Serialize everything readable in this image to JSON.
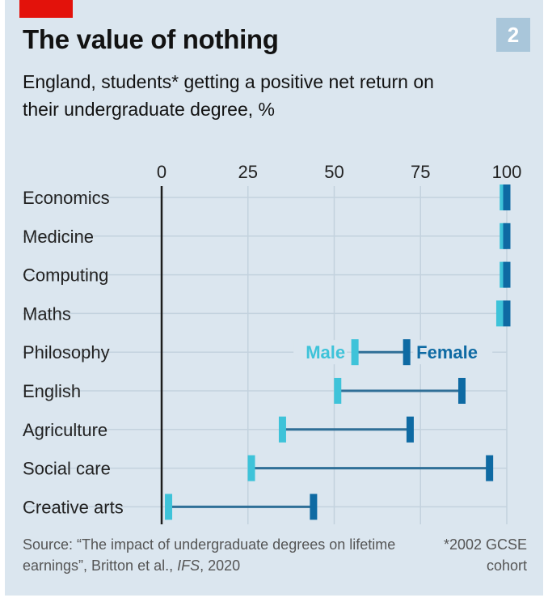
{
  "header": {
    "chart_number": "2",
    "title": "The value of nothing",
    "subtitle": "England, students* getting a positive net return on their undergraduate degree, %"
  },
  "footer": {
    "source_prefix": "Source: “The impact of undergraduate degrees on lifetime earnings”, Britton et al., ",
    "source_journal": "IFS",
    "source_suffix": ", 2020",
    "footnote": "*2002 GCSE cohort"
  },
  "colors": {
    "background": "#dbe6ef",
    "male": "#3ec3d9",
    "female": "#0e6aa3",
    "connector": "#2f6f97",
    "grid": "#c3d2de",
    "axis": "#1d1d1d",
    "brand_red": "#e3120b"
  },
  "chart_data": {
    "type": "dumbbell",
    "title": "The value of nothing",
    "subtitle": "England, students* getting a positive net return on their undergraduate degree, %",
    "xlim": [
      0,
      100
    ],
    "xticks": [
      0,
      25,
      50,
      75,
      100
    ],
    "grid": true,
    "categories": [
      "Economics",
      "Medicine",
      "Computing",
      "Maths",
      "Philosophy",
      "English",
      "Agriculture",
      "Social care",
      "Creative arts"
    ],
    "series": [
      {
        "name": "Male",
        "values": [
          99,
          99,
          99,
          98,
          56,
          51,
          35,
          26,
          2
        ]
      },
      {
        "name": "Female",
        "values": [
          100,
          100,
          100,
          100,
          71,
          87,
          72,
          95,
          44
        ]
      }
    ],
    "annotations": [
      {
        "text": "Male",
        "category": "Philosophy",
        "series": "Male"
      },
      {
        "text": "Female",
        "category": "Philosophy",
        "series": "Female"
      }
    ]
  }
}
